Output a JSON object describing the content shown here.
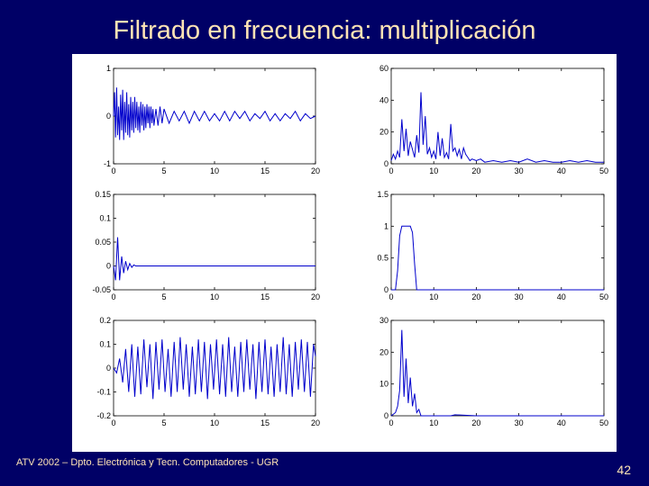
{
  "slide": {
    "title": "Filtrado en frecuencia: multiplicación",
    "footer": "ATV 2002 – Dpto. Electrónica y Tecn. Computadores - UGR",
    "page_number": "42"
  },
  "colors": {
    "background": "#000066",
    "text": "#ffe4b5",
    "line": "#0000cc"
  },
  "chart_data": [
    {
      "type": "line",
      "xlim": [
        0,
        20
      ],
      "ylim": [
        -1,
        1
      ],
      "xticks": [
        "0",
        "5",
        "10",
        "15",
        "20"
      ],
      "yticks": [
        {
          "v": 1,
          "label": "1"
        },
        {
          "v": 0,
          "label": "0"
        },
        {
          "v": -1,
          "label": "-1"
        }
      ],
      "series": [
        {
          "x": [
            0.0,
            0.1,
            0.2,
            0.3,
            0.4,
            0.5,
            0.6,
            0.7,
            0.8,
            0.9,
            1.0,
            1.1,
            1.2,
            1.3,
            1.4,
            1.5,
            1.6,
            1.7,
            1.8,
            1.9,
            2.0,
            2.1,
            2.2,
            2.3,
            2.4,
            2.5,
            2.6,
            2.7,
            2.8,
            2.9,
            3.0,
            3.1,
            3.2,
            3.3,
            3.4,
            3.5,
            3.6,
            3.7,
            3.8,
            3.9,
            4.0,
            4.2,
            4.4,
            4.6,
            4.8,
            5.0,
            5.5,
            6.0,
            6.5,
            7.0,
            7.5,
            8.0,
            8.5,
            9.0,
            9.5,
            10.0,
            10.5,
            11.0,
            11.5,
            12.0,
            12.5,
            13.0,
            13.5,
            14.0,
            14.5,
            15.0,
            15.5,
            16.0,
            16.5,
            17.0,
            17.5,
            18.0,
            18.5,
            19.0,
            19.5,
            20.0
          ],
          "y": [
            0.0,
            0.5,
            -0.45,
            0.6,
            -0.4,
            0.2,
            -0.5,
            0.45,
            -0.3,
            0.55,
            -0.5,
            0.3,
            -0.35,
            0.5,
            -0.4,
            0.25,
            -0.45,
            0.4,
            -0.3,
            0.3,
            -0.35,
            0.4,
            -0.25,
            0.3,
            -0.3,
            0.2,
            -0.35,
            0.3,
            -0.2,
            0.25,
            -0.3,
            0.2,
            -0.25,
            0.25,
            -0.15,
            0.2,
            -0.25,
            0.2,
            -0.15,
            0.15,
            -0.2,
            0.15,
            -0.2,
            0.2,
            -0.15,
            0.15,
            -0.15,
            0.1,
            -0.1,
            0.1,
            -0.15,
            0.1,
            -0.1,
            0.1,
            -0.1,
            0.05,
            -0.1,
            0.1,
            -0.1,
            0.1,
            -0.05,
            0.1,
            -0.1,
            0.05,
            -0.05,
            0.1,
            -0.1,
            0.05,
            -0.1,
            0.05,
            -0.05,
            0.1,
            -0.1,
            0.05,
            -0.05,
            0.0
          ]
        }
      ]
    },
    {
      "type": "line",
      "xlim": [
        0,
        50
      ],
      "ylim": [
        0,
        60
      ],
      "xticks": [
        "0",
        "10",
        "20",
        "30",
        "40",
        "50"
      ],
      "yticks": [
        {
          "v": 60,
          "label": "60"
        },
        {
          "v": 40,
          "label": "40"
        },
        {
          "v": 20,
          "label": "20"
        },
        {
          "v": 0,
          "label": "0"
        }
      ],
      "series": [
        {
          "x": [
            0.0,
            0.5,
            1.0,
            1.5,
            2.0,
            2.5,
            3.0,
            3.5,
            4.0,
            4.5,
            5.0,
            5.5,
            6.0,
            6.5,
            7.0,
            7.5,
            8.0,
            8.5,
            9.0,
            9.5,
            10.0,
            10.5,
            11.0,
            11.5,
            12.0,
            12.5,
            13.0,
            13.5,
            14.0,
            14.5,
            15.0,
            15.5,
            16.0,
            16.5,
            17.0,
            17.5,
            18.0,
            18.5,
            19.0,
            20.0,
            21.0,
            22.0,
            24.0,
            26.0,
            28.0,
            30.0,
            32.0,
            34.0,
            36.0,
            38.0,
            40.0,
            42.0,
            44.0,
            46.0,
            48.0,
            50.0
          ],
          "y": [
            2,
            6,
            3,
            8,
            4,
            28,
            8,
            22,
            5,
            14,
            9,
            4,
            18,
            7,
            45,
            12,
            30,
            6,
            10,
            4,
            8,
            3,
            20,
            5,
            16,
            4,
            7,
            3,
            25,
            8,
            10,
            5,
            9,
            3,
            10,
            6,
            4,
            2,
            3,
            2,
            3,
            1,
            2,
            1,
            2,
            1,
            3,
            1,
            2,
            1,
            1,
            2,
            1,
            2,
            1,
            1
          ]
        }
      ]
    },
    {
      "type": "line",
      "xlim": [
        0,
        20
      ],
      "ylim": [
        -0.05,
        0.15
      ],
      "xticks": [
        "0",
        "5",
        "10",
        "15",
        "20"
      ],
      "yticks": [
        {
          "v": 0.15,
          "label": "0.15"
        },
        {
          "v": 0.1,
          "label": "0.1"
        },
        {
          "v": 0.05,
          "label": "0.05"
        },
        {
          "v": 0,
          "label": "0"
        },
        {
          "v": -0.05,
          "label": "-0.05"
        }
      ],
      "series": [
        {
          "x": [
            0.0,
            0.2,
            0.4,
            0.6,
            0.8,
            1.0,
            1.2,
            1.4,
            1.6,
            1.8,
            2.0,
            2.2,
            2.5,
            3.0,
            5.0,
            10.0,
            15.0,
            20.0
          ],
          "y": [
            0.0,
            -0.03,
            0.06,
            -0.03,
            0.02,
            -0.015,
            0.01,
            -0.008,
            0.005,
            -0.003,
            0.002,
            0.0,
            0.0,
            0.0,
            0.0,
            0.0,
            0.0,
            0.0
          ]
        }
      ]
    },
    {
      "type": "line",
      "xlim": [
        0,
        50
      ],
      "ylim": [
        0,
        1.5
      ],
      "xticks": [
        "0",
        "10",
        "20",
        "30",
        "40",
        "50"
      ],
      "yticks": [
        {
          "v": 1.5,
          "label": "1.5"
        },
        {
          "v": 1,
          "label": "1"
        },
        {
          "v": 0.5,
          "label": "0.5"
        },
        {
          "v": 0,
          "label": "0"
        }
      ],
      "series": [
        {
          "x": [
            0.0,
            1.0,
            1.5,
            2.0,
            2.5,
            3.0,
            3.5,
            4.0,
            4.5,
            5.0,
            5.5,
            6.0,
            7.0,
            10.0,
            20.0,
            30.0,
            40.0,
            50.0
          ],
          "y": [
            0.0,
            0.0,
            0.3,
            0.85,
            1.0,
            1.0,
            1.0,
            1.0,
            1.0,
            0.9,
            0.4,
            0.0,
            0.0,
            0.0,
            0.0,
            0.0,
            0.0,
            0.0
          ]
        }
      ]
    },
    {
      "type": "line",
      "xlim": [
        0,
        20
      ],
      "ylim": [
        -0.2,
        0.2
      ],
      "xticks": [
        "0",
        "5",
        "10",
        "15",
        "20"
      ],
      "yticks": [
        {
          "v": 0.2,
          "label": "0.2"
        },
        {
          "v": 0.1,
          "label": "0.1"
        },
        {
          "v": 0,
          "label": "0"
        },
        {
          "v": -0.1,
          "label": "-0.1"
        },
        {
          "v": -0.2,
          "label": "-0.2"
        }
      ],
      "series": [
        {
          "x": [
            0.0,
            0.3,
            0.6,
            0.9,
            1.2,
            1.5,
            1.8,
            2.1,
            2.4,
            2.7,
            3.0,
            3.3,
            3.6,
            3.9,
            4.2,
            4.5,
            4.8,
            5.1,
            5.4,
            5.7,
            6.0,
            6.3,
            6.6,
            6.9,
            7.2,
            7.5,
            7.8,
            8.1,
            8.4,
            8.7,
            9.0,
            9.3,
            9.6,
            9.9,
            10.2,
            10.5,
            10.8,
            11.1,
            11.4,
            11.7,
            12.0,
            12.3,
            12.6,
            12.9,
            13.2,
            13.5,
            13.8,
            14.1,
            14.4,
            14.7,
            15.0,
            15.3,
            15.6,
            15.9,
            16.2,
            16.5,
            16.8,
            17.1,
            17.4,
            17.7,
            18.0,
            18.3,
            18.6,
            18.9,
            19.2,
            19.5,
            19.8,
            20.0
          ],
          "y": [
            0.0,
            -0.02,
            0.04,
            -0.06,
            0.08,
            -0.1,
            0.1,
            -0.12,
            0.09,
            -0.11,
            0.12,
            -0.08,
            0.1,
            -0.13,
            0.11,
            -0.09,
            0.12,
            -0.1,
            0.08,
            -0.12,
            0.11,
            -0.1,
            0.13,
            -0.09,
            0.1,
            -0.12,
            0.09,
            -0.11,
            0.12,
            -0.1,
            0.11,
            -0.13,
            0.1,
            -0.09,
            0.12,
            -0.11,
            0.1,
            -0.12,
            0.13,
            -0.1,
            0.09,
            -0.12,
            0.11,
            -0.1,
            0.12,
            -0.09,
            0.1,
            -0.13,
            0.11,
            -0.1,
            0.12,
            -0.11,
            0.09,
            -0.12,
            0.1,
            -0.1,
            0.13,
            -0.11,
            0.1,
            -0.12,
            0.11,
            -0.09,
            0.12,
            -0.1,
            0.11,
            -0.12,
            0.1,
            0.05
          ]
        }
      ]
    },
    {
      "type": "line",
      "xlim": [
        0,
        50
      ],
      "ylim": [
        0,
        30
      ],
      "xticks": [
        "0",
        "10",
        "20",
        "30",
        "40",
        "50"
      ],
      "yticks": [
        {
          "v": 30,
          "label": "30"
        },
        {
          "v": 20,
          "label": "20"
        },
        {
          "v": 10,
          "label": "10"
        },
        {
          "v": 0,
          "label": "0"
        }
      ],
      "series": [
        {
          "x": [
            0.0,
            1.0,
            1.5,
            2.0,
            2.5,
            3.0,
            3.5,
            4.0,
            4.5,
            5.0,
            5.5,
            6.0,
            6.5,
            7.0,
            8.0,
            10.0,
            12.0,
            14.0,
            15.0,
            20.0,
            30.0,
            40.0,
            50.0
          ],
          "y": [
            0,
            1,
            3,
            8,
            27,
            6,
            18,
            4,
            12,
            3,
            7,
            1,
            2,
            0,
            0,
            0,
            0,
            0,
            0.3,
            0,
            0,
            0,
            0
          ]
        }
      ]
    }
  ]
}
